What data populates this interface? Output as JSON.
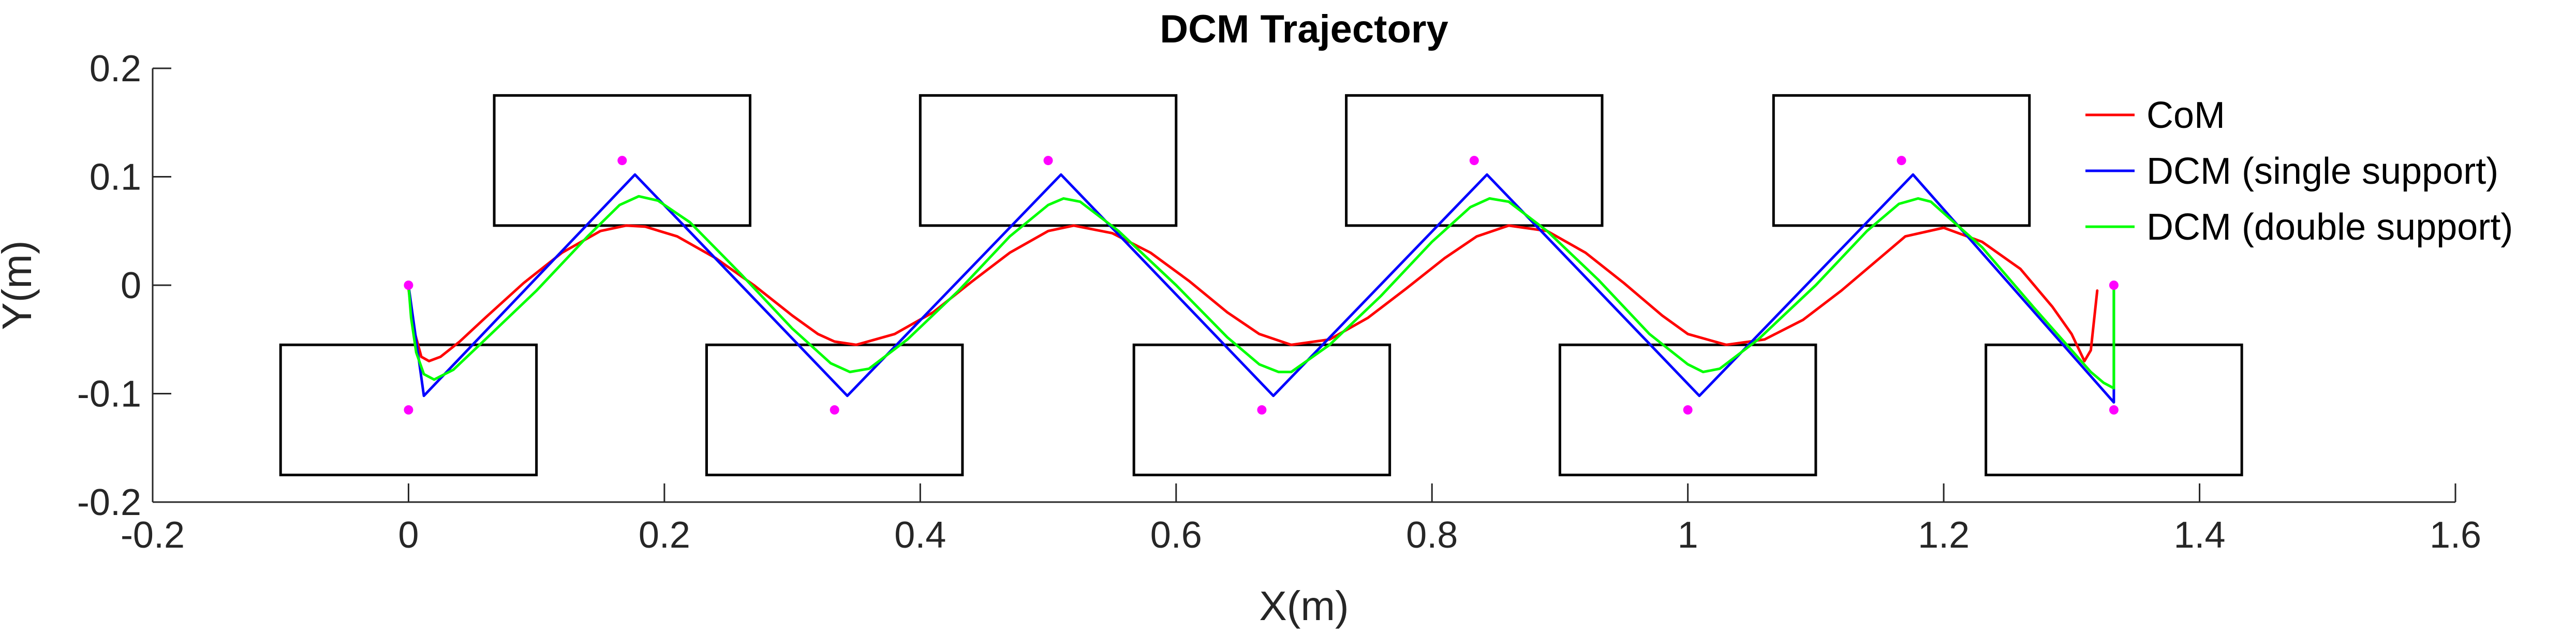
{
  "chart_data": {
    "type": "line",
    "title": "DCM Trajectory",
    "xlabel": "X(m)",
    "ylabel": "Y(m)",
    "xlim": [
      -0.2,
      1.6
    ],
    "ylim": [
      -0.2,
      0.2
    ],
    "xticks": [
      -0.2,
      0,
      0.2,
      0.4,
      0.6,
      0.8,
      1,
      1.2,
      1.4,
      1.6
    ],
    "xtick_labels": [
      "-0.2",
      "0",
      "0.2",
      "0.4",
      "0.6",
      "0.8",
      "1",
      "1.2",
      "1.4",
      "1.6"
    ],
    "yticks": [
      -0.2,
      -0.1,
      0,
      0.1,
      0.2
    ],
    "ytick_labels": [
      "-0.2",
      "-0.1",
      "0",
      "0.1",
      "0.2"
    ],
    "grid": false,
    "legend": {
      "position": "top-right",
      "boxed": false
    },
    "series": [
      {
        "name": "CoM",
        "color": "#ff0000",
        "x": [
          0.0,
          0.004,
          0.01,
          0.016,
          0.025,
          0.04,
          0.06,
          0.09,
          0.12,
          0.15,
          0.17,
          0.185,
          0.21,
          0.24,
          0.27,
          0.3,
          0.32,
          0.333,
          0.35,
          0.38,
          0.41,
          0.44,
          0.47,
          0.5,
          0.52,
          0.55,
          0.58,
          0.61,
          0.64,
          0.665,
          0.69,
          0.72,
          0.75,
          0.78,
          0.81,
          0.835,
          0.86,
          0.89,
          0.92,
          0.95,
          0.98,
          1.0,
          1.03,
          1.06,
          1.09,
          1.12,
          1.15,
          1.17,
          1.2,
          1.23,
          1.26,
          1.285,
          1.3,
          1.31,
          1.315,
          1.32
        ],
        "y": [
          -0.003,
          -0.04,
          -0.066,
          -0.07,
          -0.066,
          -0.052,
          -0.03,
          0.002,
          0.03,
          0.05,
          0.055,
          0.054,
          0.045,
          0.025,
          0.0,
          -0.028,
          -0.045,
          -0.052,
          -0.055,
          -0.045,
          -0.025,
          0.003,
          0.03,
          0.05,
          0.055,
          0.048,
          0.03,
          0.004,
          -0.025,
          -0.045,
          -0.055,
          -0.05,
          -0.03,
          -0.003,
          0.025,
          0.045,
          0.055,
          0.05,
          0.03,
          0.002,
          -0.028,
          -0.045,
          -0.055,
          -0.05,
          -0.032,
          -0.005,
          0.025,
          0.045,
          0.053,
          0.04,
          0.015,
          -0.02,
          -0.045,
          -0.07,
          -0.06,
          -0.005
        ]
      },
      {
        "name": "DCM (single support)",
        "color": "#0000ff",
        "x": [
          0.0,
          0.012,
          0.177,
          0.343,
          0.51,
          0.676,
          0.843,
          1.009,
          1.176,
          1.333,
          1.333
        ],
        "y": [
          0.0,
          -0.102,
          0.102,
          -0.102,
          0.102,
          -0.102,
          0.102,
          -0.102,
          0.102,
          -0.108,
          0.0
        ]
      },
      {
        "name": "DCM (double support)",
        "color": "#00ff00",
        "x": [
          0.0,
          0.002,
          0.006,
          0.012,
          0.02,
          0.035,
          0.06,
          0.1,
          0.14,
          0.165,
          0.18,
          0.195,
          0.22,
          0.26,
          0.3,
          0.33,
          0.345,
          0.36,
          0.39,
          0.43,
          0.47,
          0.5,
          0.512,
          0.525,
          0.555,
          0.6,
          0.64,
          0.665,
          0.68,
          0.69,
          0.72,
          0.76,
          0.8,
          0.83,
          0.845,
          0.86,
          0.89,
          0.93,
          0.97,
          1.0,
          1.012,
          1.025,
          1.055,
          1.1,
          1.14,
          1.165,
          1.18,
          1.19,
          1.23,
          1.27,
          1.3,
          1.315,
          1.325,
          1.333,
          1.333,
          1.333
        ],
        "y": [
          0.0,
          -0.03,
          -0.062,
          -0.082,
          -0.087,
          -0.078,
          -0.05,
          -0.005,
          0.045,
          0.074,
          0.082,
          0.078,
          0.058,
          0.01,
          -0.04,
          -0.072,
          -0.08,
          -0.077,
          -0.05,
          -0.005,
          0.045,
          0.074,
          0.08,
          0.077,
          0.05,
          0.0,
          -0.048,
          -0.073,
          -0.08,
          -0.08,
          -0.055,
          -0.01,
          0.04,
          0.072,
          0.08,
          0.077,
          0.05,
          0.005,
          -0.045,
          -0.073,
          -0.08,
          -0.077,
          -0.05,
          0.0,
          0.05,
          0.075,
          0.08,
          0.077,
          0.035,
          -0.02,
          -0.06,
          -0.08,
          -0.09,
          -0.095,
          -0.05,
          0.0
        ]
      }
    ],
    "footholds": [
      {
        "x": [
          -0.1,
          0.1
        ],
        "y": [
          -0.175,
          -0.055
        ]
      },
      {
        "x": [
          0.067,
          0.267
        ],
        "y": [
          0.055,
          0.175
        ]
      },
      {
        "x": [
          0.233,
          0.433
        ],
        "y": [
          -0.175,
          -0.055
        ]
      },
      {
        "x": [
          0.4,
          0.6
        ],
        "y": [
          0.055,
          0.175
        ]
      },
      {
        "x": [
          0.567,
          0.767
        ],
        "y": [
          -0.175,
          -0.055
        ]
      },
      {
        "x": [
          0.733,
          0.933
        ],
        "y": [
          0.055,
          0.175
        ]
      },
      {
        "x": [
          0.9,
          1.1
        ],
        "y": [
          -0.175,
          -0.055
        ]
      },
      {
        "x": [
          1.067,
          1.267
        ],
        "y": [
          0.055,
          0.175
        ]
      },
      {
        "x": [
          1.233,
          1.433
        ],
        "y": [
          -0.175,
          -0.055
        ]
      }
    ],
    "foothold_color": "#000000",
    "points": {
      "color": "#ff00ff",
      "x": [
        0.0,
        0.0,
        0.167,
        0.333,
        0.5,
        0.667,
        0.833,
        1.0,
        1.167,
        1.333,
        1.333
      ],
      "y": [
        0.0,
        -0.115,
        0.115,
        -0.115,
        0.115,
        -0.115,
        0.115,
        -0.115,
        0.115,
        -0.115,
        0.0
      ]
    }
  }
}
